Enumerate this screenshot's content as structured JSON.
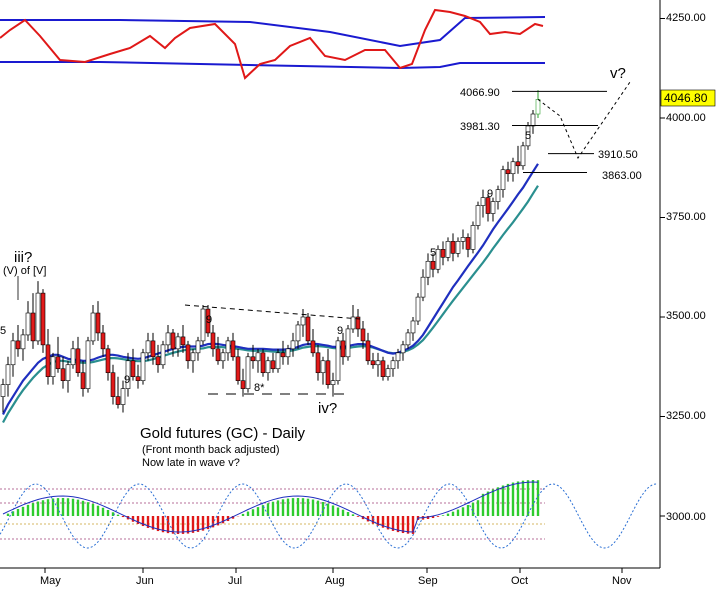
{
  "chart_data": {
    "type": "candlestick",
    "title": "Gold futures (GC) - Daily",
    "subtitle_lines": [
      "(Front month back adjusted)",
      "Now late in wave v?"
    ],
    "x_axis_labels": [
      "May",
      "Jun",
      "Jul",
      "Aug",
      "Sep",
      "Oct",
      "Nov"
    ],
    "y_axis": {
      "ticks": [
        3250,
        3500,
        3750,
        4000,
        4250
      ],
      "tick_labels": [
        "3250.00",
        "3500.00",
        "3750.00",
        "4000.00",
        "4250.00"
      ],
      "ylim": [
        3150,
        4290
      ],
      "lower_pane_tick_label": "3000.00"
    },
    "last_price_label": "4046.80",
    "last_price": 4046.8,
    "price_levels": [
      {
        "label": "4066.90",
        "value": 4066.9
      },
      {
        "label": "3981.30",
        "value": 3981.3
      },
      {
        "label": "3910.50",
        "value": 3910.5
      },
      {
        "label": "3863.00",
        "value": 3863.0
      }
    ],
    "wave_labels": [
      {
        "text": "iii?"
      },
      {
        "text": "(V) of [V]"
      },
      {
        "text": "iv?"
      },
      {
        "text": "v?"
      }
    ],
    "count_labels": [
      {
        "text": "5",
        "color": "#9a8a2c"
      },
      {
        "text": "9",
        "color": "#d42020"
      },
      {
        "text": "9",
        "color": "#2a2ad0"
      },
      {
        "text": "8*",
        "color": "#2a2ad0"
      },
      {
        "text": "9",
        "color": "#d42020"
      },
      {
        "text": "5",
        "color": "#9a8a2c"
      },
      {
        "text": "9",
        "color": "#d42020"
      },
      {
        "text": "5",
        "color": "#9a8a2c"
      }
    ],
    "colors": {
      "up_candle": "#ffffff",
      "down_candle": "#e21a1a",
      "ma_fast": "#1f2fbf",
      "ma_slow": "#2a8f8f",
      "top_band": "#1a1ad0",
      "top_osc": "#e01818",
      "histogram_pos": "#2ecc2e",
      "histogram_neg": "#e01818",
      "cycle": "#2a6fd4",
      "price_tag": "#ffff00"
    },
    "candles": [
      [
        3300,
        3345,
        3260,
        3330
      ],
      [
        3330,
        3400,
        3300,
        3380
      ],
      [
        3380,
        3460,
        3350,
        3440
      ],
      [
        3440,
        3480,
        3400,
        3420
      ],
      [
        3420,
        3470,
        3390,
        3455
      ],
      [
        3455,
        3540,
        3440,
        3510
      ],
      [
        3510,
        3560,
        3420,
        3440
      ],
      [
        3440,
        3590,
        3430,
        3560
      ],
      [
        3560,
        3570,
        3410,
        3430
      ],
      [
        3430,
        3470,
        3330,
        3350
      ],
      [
        3350,
        3410,
        3330,
        3400
      ],
      [
        3400,
        3450,
        3360,
        3370
      ],
      [
        3370,
        3400,
        3320,
        3340
      ],
      [
        3340,
        3390,
        3310,
        3380
      ],
      [
        3380,
        3440,
        3370,
        3420
      ],
      [
        3420,
        3450,
        3350,
        3360
      ],
      [
        3360,
        3390,
        3300,
        3320
      ],
      [
        3320,
        3450,
        3310,
        3440
      ],
      [
        3440,
        3530,
        3430,
        3510
      ],
      [
        3510,
        3540,
        3440,
        3460
      ],
      [
        3460,
        3480,
        3400,
        3420
      ],
      [
        3420,
        3430,
        3340,
        3360
      ],
      [
        3360,
        3380,
        3280,
        3300
      ],
      [
        3300,
        3350,
        3270,
        3280
      ],
      [
        3280,
        3340,
        3260,
        3320
      ],
      [
        3320,
        3410,
        3300,
        3390
      ],
      [
        3390,
        3420,
        3340,
        3350
      ],
      [
        3350,
        3380,
        3320,
        3340
      ],
      [
        3340,
        3420,
        3330,
        3410
      ],
      [
        3410,
        3460,
        3390,
        3440
      ],
      [
        3440,
        3460,
        3380,
        3400
      ],
      [
        3400,
        3430,
        3360,
        3380
      ],
      [
        3380,
        3440,
        3370,
        3430
      ],
      [
        3430,
        3480,
        3410,
        3460
      ],
      [
        3460,
        3470,
        3400,
        3420
      ],
      [
        3420,
        3460,
        3400,
        3450
      ],
      [
        3450,
        3480,
        3410,
        3430
      ],
      [
        3430,
        3440,
        3370,
        3390
      ],
      [
        3390,
        3420,
        3360,
        3410
      ],
      [
        3410,
        3450,
        3390,
        3440
      ],
      [
        3440,
        3530,
        3430,
        3520
      ],
      [
        3520,
        3530,
        3450,
        3460
      ],
      [
        3460,
        3480,
        3400,
        3420
      ],
      [
        3420,
        3450,
        3380,
        3390
      ],
      [
        3390,
        3420,
        3370,
        3410
      ],
      [
        3410,
        3450,
        3390,
        3440
      ],
      [
        3440,
        3460,
        3390,
        3400
      ],
      [
        3400,
        3420,
        3330,
        3340
      ],
      [
        3340,
        3370,
        3300,
        3320
      ],
      [
        3320,
        3410,
        3310,
        3400
      ],
      [
        3400,
        3430,
        3370,
        3390
      ],
      [
        3390,
        3420,
        3360,
        3410
      ],
      [
        3410,
        3420,
        3350,
        3360
      ],
      [
        3360,
        3400,
        3340,
        3390
      ],
      [
        3390,
        3410,
        3360,
        3370
      ],
      [
        3370,
        3420,
        3360,
        3410
      ],
      [
        3410,
        3440,
        3380,
        3400
      ],
      [
        3400,
        3430,
        3380,
        3420
      ],
      [
        3420,
        3460,
        3400,
        3440
      ],
      [
        3440,
        3490,
        3420,
        3480
      ],
      [
        3480,
        3520,
        3450,
        3500
      ],
      [
        3500,
        3510,
        3430,
        3440
      ],
      [
        3440,
        3470,
        3400,
        3410
      ],
      [
        3410,
        3430,
        3340,
        3360
      ],
      [
        3360,
        3400,
        3330,
        3390
      ],
      [
        3390,
        3420,
        3320,
        3330
      ],
      [
        3330,
        3360,
        3300,
        3340
      ],
      [
        3340,
        3450,
        3330,
        3440
      ],
      [
        3440,
        3460,
        3380,
        3400
      ],
      [
        3400,
        3480,
        3390,
        3470
      ],
      [
        3470,
        3530,
        3460,
        3500
      ],
      [
        3500,
        3520,
        3450,
        3470
      ],
      [
        3470,
        3490,
        3420,
        3440
      ],
      [
        3440,
        3460,
        3380,
        3390
      ],
      [
        3390,
        3410,
        3370,
        3380
      ],
      [
        3380,
        3410,
        3350,
        3390
      ],
      [
        3390,
        3400,
        3340,
        3350
      ],
      [
        3350,
        3380,
        3340,
        3370
      ],
      [
        3370,
        3400,
        3350,
        3390
      ],
      [
        3390,
        3420,
        3370,
        3410
      ],
      [
        3410,
        3440,
        3390,
        3430
      ],
      [
        3430,
        3470,
        3420,
        3460
      ],
      [
        3460,
        3500,
        3440,
        3490
      ],
      [
        3490,
        3560,
        3480,
        3550
      ],
      [
        3550,
        3620,
        3540,
        3600
      ],
      [
        3600,
        3660,
        3580,
        3640
      ],
      [
        3640,
        3660,
        3600,
        3620
      ],
      [
        3620,
        3680,
        3610,
        3670
      ],
      [
        3670,
        3690,
        3630,
        3650
      ],
      [
        3650,
        3700,
        3640,
        3690
      ],
      [
        3690,
        3710,
        3640,
        3660
      ],
      [
        3660,
        3700,
        3650,
        3690
      ],
      [
        3690,
        3720,
        3670,
        3700
      ],
      [
        3700,
        3710,
        3650,
        3670
      ],
      [
        3670,
        3740,
        3660,
        3730
      ],
      [
        3730,
        3790,
        3720,
        3780
      ],
      [
        3780,
        3820,
        3750,
        3800
      ],
      [
        3800,
        3810,
        3740,
        3760
      ],
      [
        3760,
        3800,
        3740,
        3790
      ],
      [
        3790,
        3830,
        3770,
        3820
      ],
      [
        3820,
        3880,
        3800,
        3870
      ],
      [
        3870,
        3890,
        3840,
        3860
      ],
      [
        3860,
        3900,
        3840,
        3890
      ],
      [
        3890,
        3930,
        3860,
        3880
      ],
      [
        3880,
        3940,
        3870,
        3930
      ],
      [
        3930,
        3990,
        3920,
        3980
      ],
      [
        3980,
        4020,
        3960,
        4010
      ],
      [
        4010,
        4070,
        4000,
        4046.8
      ]
    ],
    "ma_fast": [
      3255,
      3280,
      3300,
      3320,
      3340,
      3355,
      3370,
      3385,
      3395,
      3400,
      3405,
      3405,
      3400,
      3395,
      3393,
      3392,
      3390,
      3390,
      3393,
      3398,
      3402,
      3405,
      3405,
      3403,
      3400,
      3398,
      3396,
      3395,
      3396,
      3400,
      3404,
      3408,
      3412,
      3416,
      3420,
      3423,
      3425,
      3426,
      3426,
      3426,
      3428,
      3432,
      3433,
      3432,
      3430,
      3428,
      3427,
      3425,
      3422,
      3420,
      3420,
      3420,
      3420,
      3419,
      3418,
      3418,
      3418,
      3419,
      3421,
      3425,
      3430,
      3432,
      3433,
      3432,
      3430,
      3428,
      3425,
      3425,
      3425,
      3427,
      3430,
      3432,
      3432,
      3430,
      3425,
      3420,
      3415,
      3410,
      3408,
      3410,
      3415,
      3420,
      3428,
      3440,
      3455,
      3475,
      3495,
      3515,
      3535,
      3555,
      3575,
      3592,
      3610,
      3628,
      3645,
      3662,
      3680,
      3700,
      3720,
      3738,
      3755,
      3772,
      3790,
      3808,
      3825,
      3845,
      3865,
      3885
    ],
    "ma_slow": [
      3235,
      3258,
      3278,
      3298,
      3316,
      3332,
      3347,
      3360,
      3372,
      3380,
      3387,
      3390,
      3390,
      3388,
      3387,
      3386,
      3385,
      3385,
      3387,
      3390,
      3393,
      3396,
      3397,
      3396,
      3394,
      3392,
      3390,
      3389,
      3389,
      3391,
      3394,
      3398,
      3402,
      3406,
      3410,
      3413,
      3416,
      3418,
      3419,
      3420,
      3421,
      3424,
      3425,
      3425,
      3424,
      3422,
      3421,
      3420,
      3418,
      3416,
      3415,
      3415,
      3415,
      3414,
      3413,
      3413,
      3413,
      3414,
      3416,
      3419,
      3423,
      3425,
      3427,
      3427,
      3426,
      3424,
      3422,
      3421,
      3421,
      3422,
      3424,
      3426,
      3427,
      3426,
      3423,
      3419,
      3415,
      3411,
      3409,
      3409,
      3412,
      3416,
      3422,
      3431,
      3442,
      3457,
      3473,
      3490,
      3507,
      3524,
      3541,
      3557,
      3573,
      3589,
      3605,
      3621,
      3637,
      3654,
      3672,
      3689,
      3706,
      3722,
      3738,
      3755,
      3772,
      3790,
      3810,
      3830
    ]
  }
}
